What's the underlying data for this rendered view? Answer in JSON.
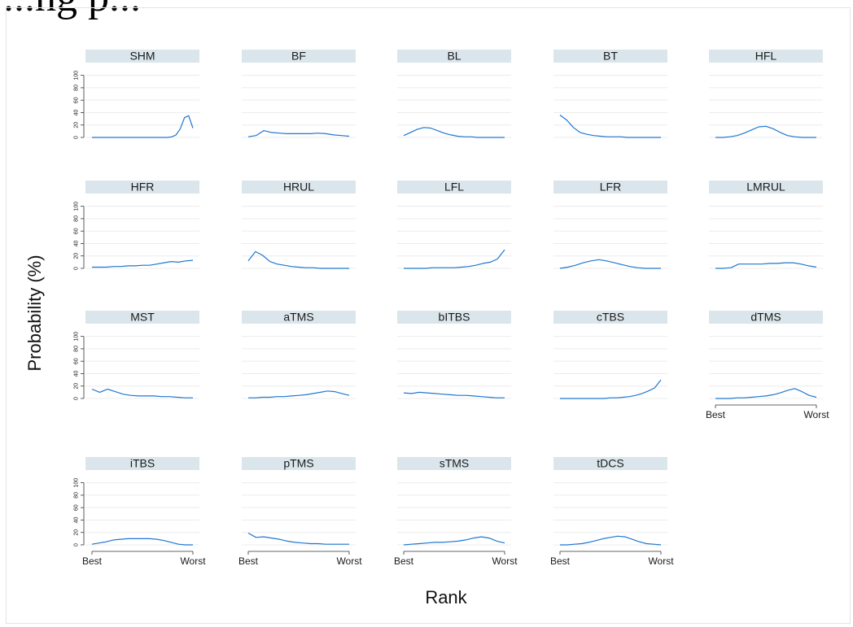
{
  "page": {
    "title": "...ng p..."
  },
  "chart_data": {
    "type": "line",
    "xlabel": "Rank",
    "ylabel": "Probability (%)",
    "x_tick_labels": [
      "Best",
      "Worst"
    ],
    "y_ticks": [
      0,
      20,
      40,
      60,
      80,
      100
    ],
    "ylim": [
      0,
      110
    ],
    "grid": true,
    "line_color": "#1f77d0",
    "panel_header_color": "#dbe6ec",
    "series": [
      {
        "name": "SHM",
        "values": [
          0,
          0,
          0,
          0,
          0,
          0,
          0,
          0,
          0,
          0,
          0,
          0,
          0,
          0,
          0,
          0,
          0,
          0,
          0,
          1,
          4,
          14,
          32,
          35,
          15
        ]
      },
      {
        "name": "BF",
        "values": [
          1,
          3,
          11,
          8,
          7,
          6,
          6,
          6,
          6,
          7,
          6,
          4,
          3,
          2
        ]
      },
      {
        "name": "BL",
        "values": [
          3,
          8,
          13,
          16,
          15,
          11,
          7,
          4,
          2,
          1,
          1,
          0,
          0,
          0,
          0,
          0
        ]
      },
      {
        "name": "BT",
        "values": [
          36,
          28,
          16,
          8,
          5,
          3,
          2,
          1,
          1,
          1,
          0,
          0,
          0,
          0,
          0,
          0
        ]
      },
      {
        "name": "HFL",
        "values": [
          0,
          0,
          1,
          3,
          7,
          12,
          17,
          18,
          14,
          8,
          3,
          1,
          0,
          0,
          0
        ]
      },
      {
        "name": "HFR",
        "values": [
          2,
          2,
          2,
          3,
          3,
          4,
          4,
          5,
          5,
          7,
          9,
          11,
          10,
          12,
          13
        ]
      },
      {
        "name": "HRUL",
        "values": [
          12,
          27,
          21,
          11,
          7,
          5,
          3,
          2,
          1,
          1,
          0,
          0,
          0,
          0,
          0
        ]
      },
      {
        "name": "LFL",
        "values": [
          0,
          0,
          0,
          0,
          1,
          1,
          1,
          1,
          2,
          3,
          5,
          8,
          10,
          15,
          30
        ]
      },
      {
        "name": "LFR",
        "values": [
          0,
          2,
          5,
          9,
          12,
          14,
          12,
          9,
          6,
          3,
          1,
          0,
          0,
          0
        ]
      },
      {
        "name": "LMRUL",
        "values": [
          0,
          0,
          1,
          7,
          7,
          7,
          7,
          8,
          8,
          9,
          9,
          7,
          4,
          2
        ]
      },
      {
        "name": "MST",
        "values": [
          15,
          10,
          15,
          11,
          7,
          5,
          4,
          4,
          4,
          3,
          3,
          2,
          1,
          1
        ]
      },
      {
        "name": "aTMS",
        "values": [
          1,
          1,
          2,
          2,
          3,
          3,
          4,
          5,
          6,
          8,
          10,
          12,
          11,
          8,
          5
        ]
      },
      {
        "name": "bITBS",
        "values": [
          9,
          8,
          10,
          9,
          8,
          7,
          6,
          5,
          5,
          4,
          3,
          2,
          1,
          1
        ]
      },
      {
        "name": "cTBS",
        "values": [
          0,
          0,
          0,
          0,
          0,
          0,
          0,
          0,
          1,
          1,
          2,
          3,
          5,
          8,
          12,
          17,
          30
        ]
      },
      {
        "name": "dTMS",
        "values": [
          0,
          0,
          0,
          1,
          1,
          2,
          3,
          4,
          6,
          9,
          13,
          16,
          11,
          5,
          2
        ]
      },
      {
        "name": "iTBS",
        "values": [
          1,
          3,
          5,
          8,
          9,
          10,
          10,
          10,
          10,
          9,
          7,
          4,
          1,
          0,
          0
        ]
      },
      {
        "name": "pTMS",
        "values": [
          19,
          12,
          13,
          11,
          9,
          6,
          4,
          3,
          2,
          2,
          1,
          1,
          1,
          1
        ]
      },
      {
        "name": "sTMS",
        "values": [
          0,
          1,
          2,
          3,
          4,
          4,
          5,
          6,
          8,
          11,
          13,
          11,
          6,
          3
        ]
      },
      {
        "name": "tDCS",
        "values": [
          0,
          0,
          1,
          2,
          4,
          7,
          10,
          12,
          14,
          13,
          9,
          5,
          2,
          1,
          0
        ]
      }
    ]
  }
}
